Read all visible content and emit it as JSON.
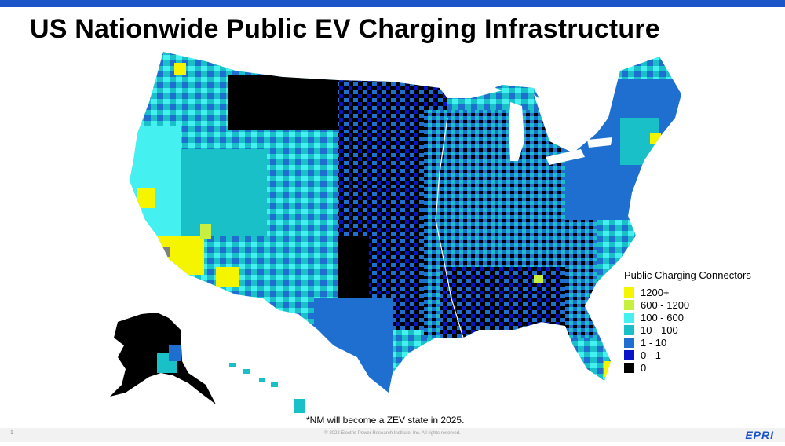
{
  "title": "US Nationwide Public EV Charging Infrastructure",
  "legend": {
    "title": "Public Charging Connectors",
    "items": [
      {
        "label": "1200+",
        "color": "#f5f500"
      },
      {
        "label": "600 - 1200",
        "color": "#c6ef40"
      },
      {
        "label": "100 - 600",
        "color": "#44f0f0"
      },
      {
        "label": "10 - 100",
        "color": "#19c0c8"
      },
      {
        "label": "1 - 10",
        "color": "#1e6fd0"
      },
      {
        "label": "0 - 1",
        "color": "#0a14c8"
      },
      {
        "label": "0",
        "color": "#000000"
      }
    ]
  },
  "footnote": "*NM will become a ZEV state in 2025.",
  "footer": {
    "page_number": "1",
    "copyright": "© 2022 Electric Power Research Institute, Inc. All rights reserved.",
    "logo": "EPRI"
  },
  "colors": {
    "accent_bar": "#1b55c8",
    "no_data": "#808080"
  }
}
